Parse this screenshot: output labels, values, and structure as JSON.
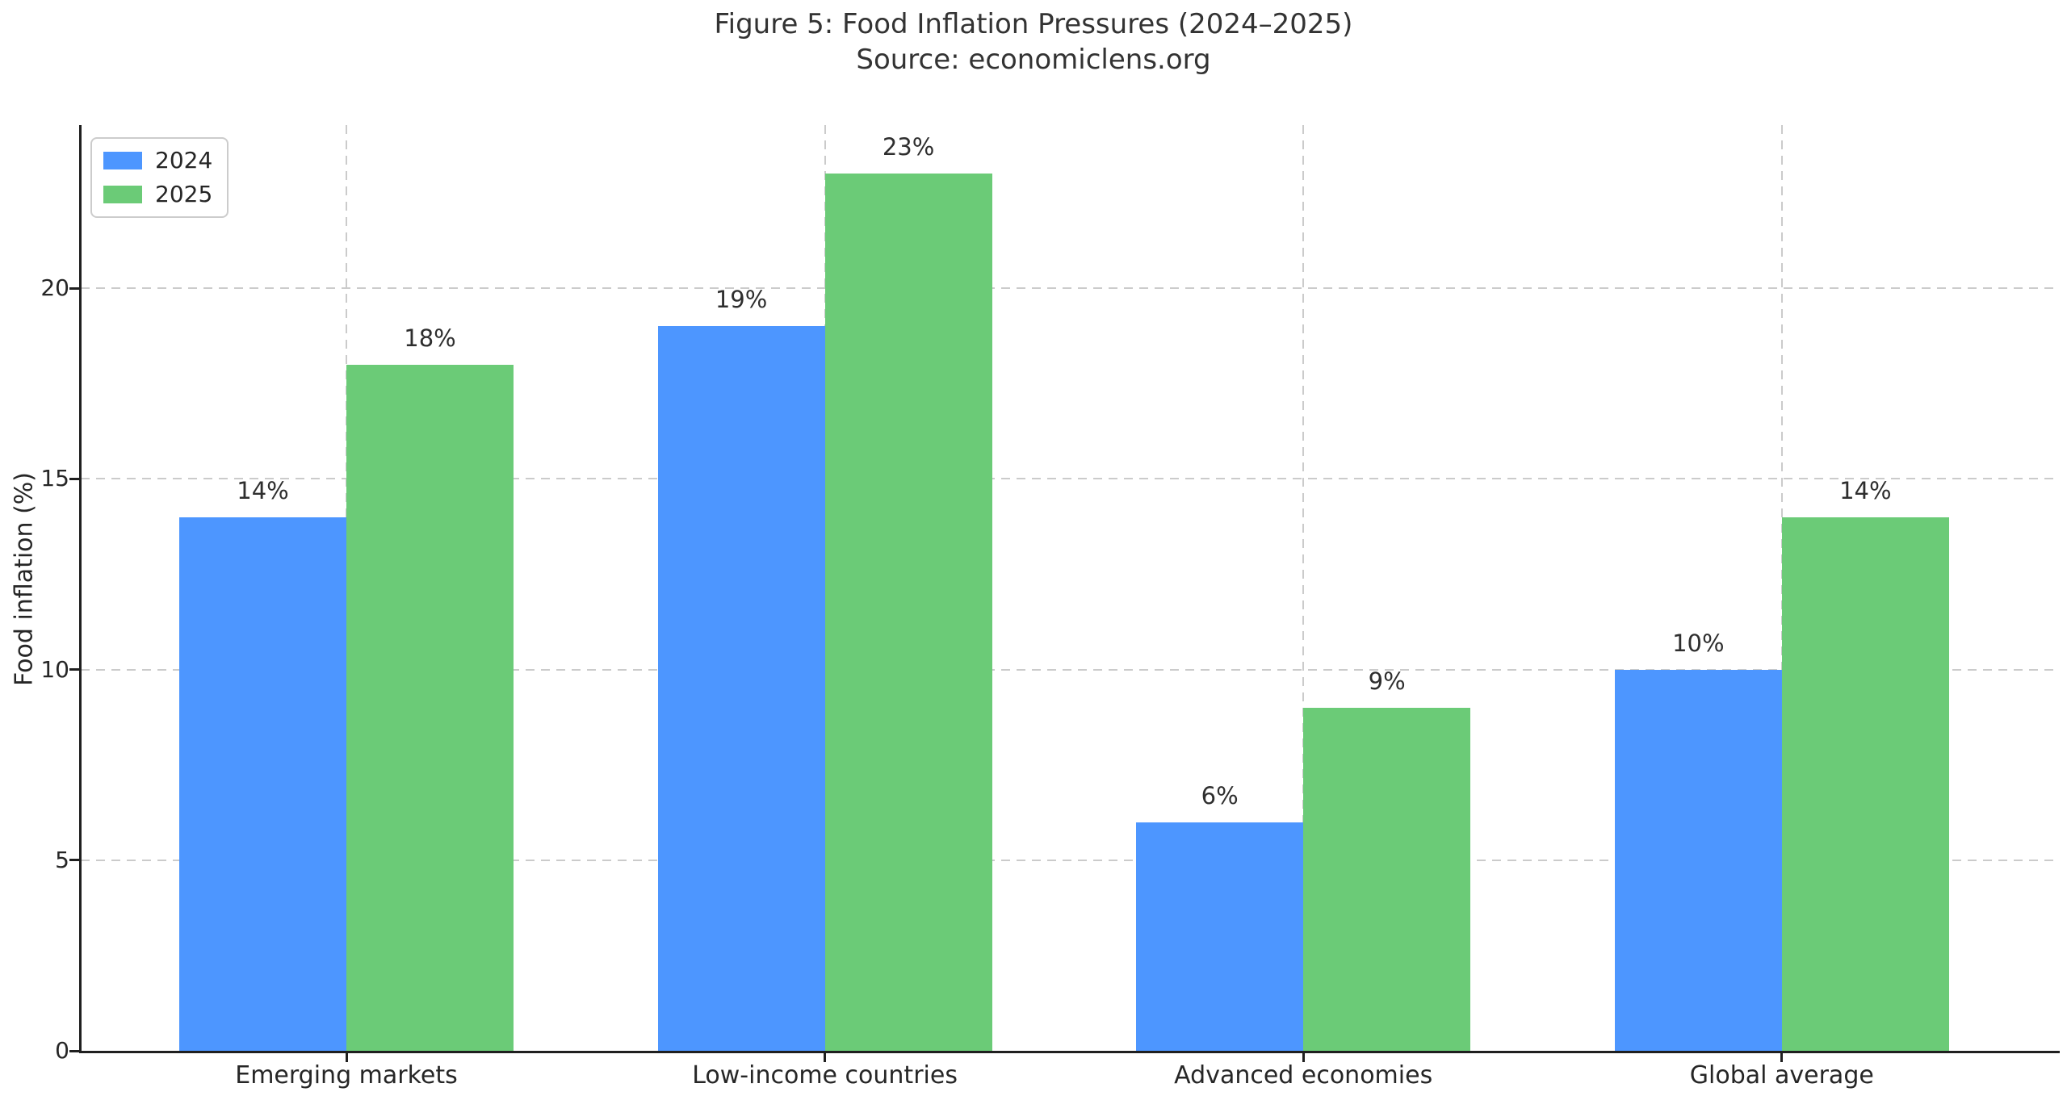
{
  "chart_data": {
    "type": "bar",
    "title": "Figure 5: Food Inflation Pressures (2024–2025)",
    "subtitle": "Source: economiclens.org",
    "xlabel": "",
    "ylabel": "Food inflation (%)",
    "categories": [
      "Emerging markets",
      "Low-income countries",
      "Advanced economies",
      "Global average"
    ],
    "series": [
      {
        "name": "2024",
        "color": "#4D96FF",
        "values": [
          14,
          19,
          6,
          10
        ],
        "labels": [
          "14%",
          "19%",
          "6%",
          "10%"
        ]
      },
      {
        "name": "2025",
        "color": "#6BCB77",
        "values": [
          18,
          23,
          9,
          14
        ],
        "labels": [
          "18%",
          "23%",
          "9%",
          "14%"
        ]
      }
    ],
    "yticks": [
      0,
      5,
      10,
      15,
      20
    ],
    "ylim": [
      0,
      24.3
    ],
    "grid": "dashed-horizontal-and-vertical",
    "legend_position": "upper-left",
    "background": "#ffffff"
  }
}
